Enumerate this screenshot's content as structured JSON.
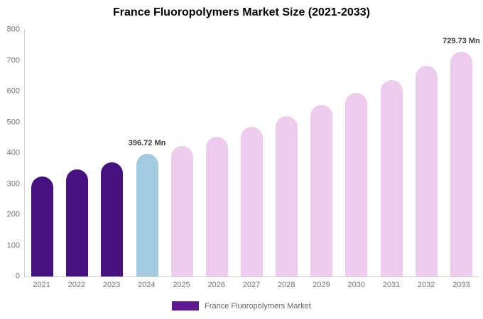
{
  "chart_data": {
    "type": "bar",
    "title": "France Fluoropolymers Market Size (2021-2033)",
    "categories": [
      "2021",
      "2022",
      "2023",
      "2024",
      "2025",
      "2026",
      "2027",
      "2028",
      "2029",
      "2030",
      "2031",
      "2032",
      "2033"
    ],
    "values": [
      324,
      347,
      371,
      396.72,
      424,
      454,
      486,
      520,
      556,
      595,
      637,
      682,
      729.73
    ],
    "unit": "Mn",
    "xlabel": "",
    "ylabel": "",
    "ylim": [
      0,
      800
    ],
    "yticks": [
      0,
      100,
      200,
      300,
      400,
      500,
      600,
      700,
      800
    ],
    "grid": false,
    "legend_position": "bottom",
    "colors": {
      "historical": "#45117e",
      "current": "#a3cbe0",
      "forecast": "#edccee"
    },
    "color_keys": [
      "historical",
      "historical",
      "historical",
      "current",
      "forecast",
      "forecast",
      "forecast",
      "forecast",
      "forecast",
      "forecast",
      "forecast",
      "forecast",
      "forecast"
    ],
    "annotations": [
      {
        "category": "2024",
        "text": "396.72 Mn"
      },
      {
        "category": "2033",
        "text": "729.73 Mn"
      }
    ]
  },
  "legend": {
    "label": "France Fluoropolymers Market",
    "color": "#5e1a8e"
  },
  "axis": {
    "line_color": "#cfcfcf",
    "tick_text_color": "#757575"
  }
}
